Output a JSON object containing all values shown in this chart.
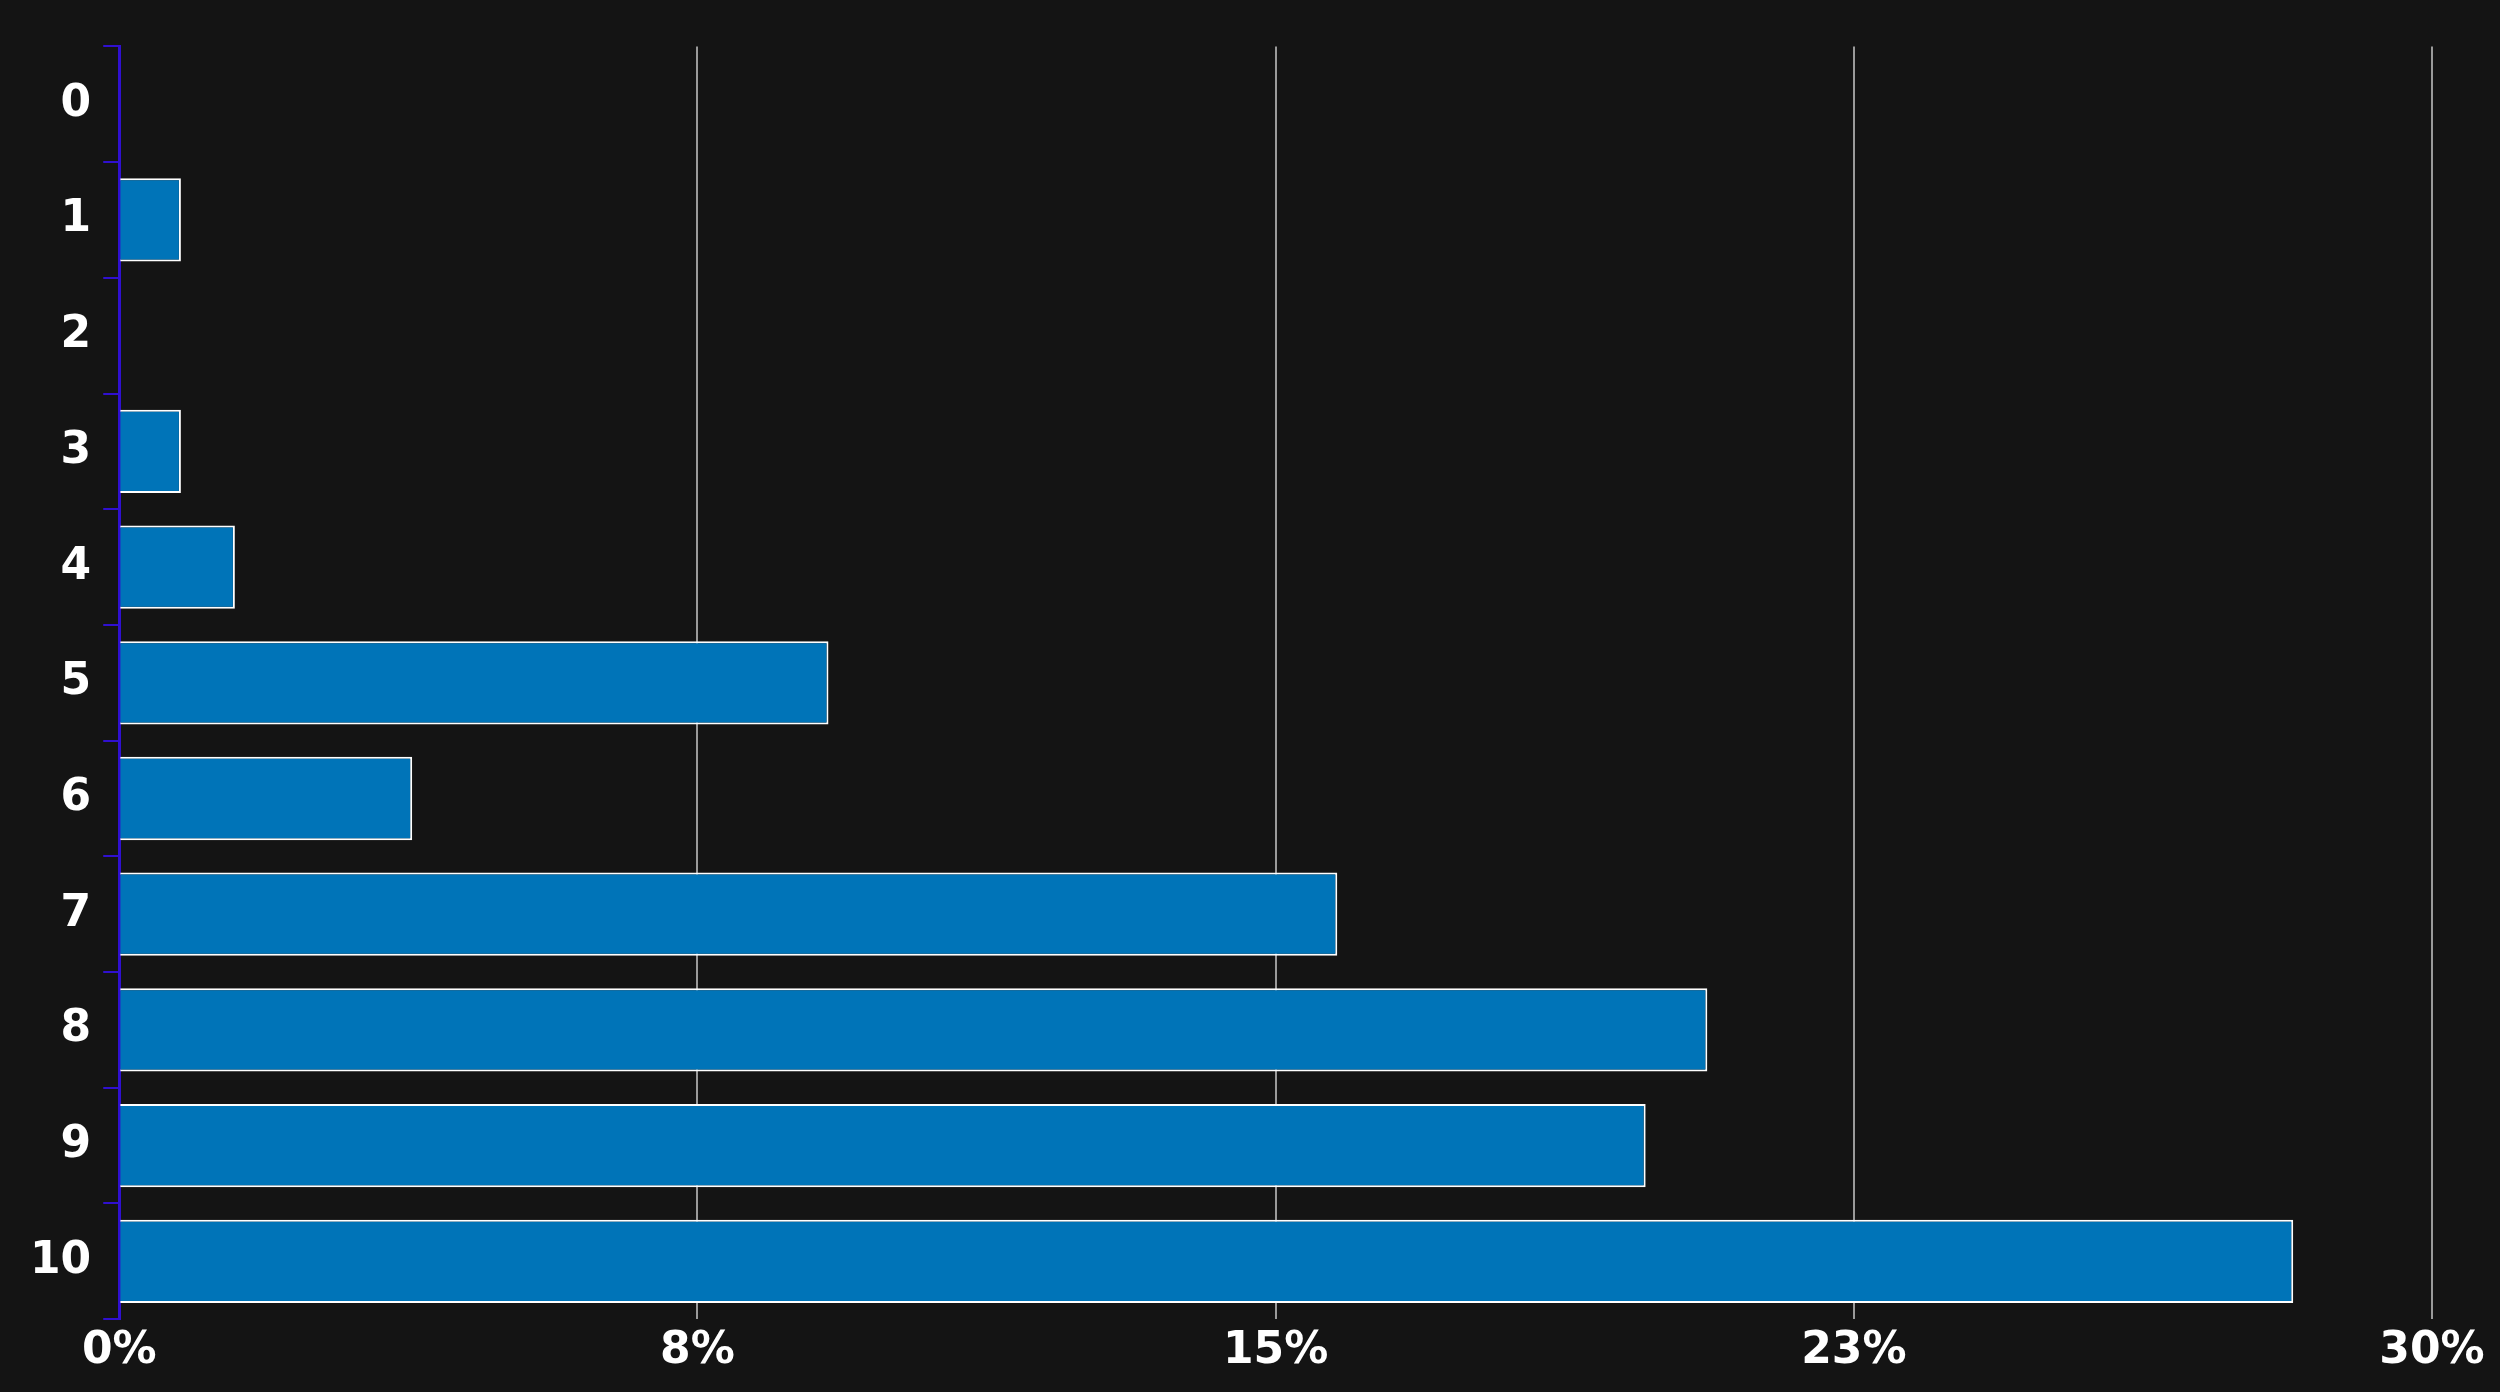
{
  "chart_data": {
    "type": "bar",
    "orientation": "horizontal",
    "categories": [
      "0",
      "1",
      "2",
      "3",
      "4",
      "5",
      "6",
      "7",
      "8",
      "9",
      "10"
    ],
    "values": [
      0,
      0.8,
      0,
      0.8,
      1.5,
      9.2,
      3.8,
      15.8,
      20.6,
      19.8,
      28.2
    ],
    "color": "#0074b8",
    "xlim": [
      0,
      30
    ],
    "xticks": [
      {
        "value": 0,
        "label": "0%"
      },
      {
        "value": 7.5,
        "label": "8%"
      },
      {
        "value": 15,
        "label": "15%"
      },
      {
        "value": 22.5,
        "label": "23%"
      },
      {
        "value": 30,
        "label": "30%"
      }
    ],
    "grid": "x",
    "legend": false
  }
}
